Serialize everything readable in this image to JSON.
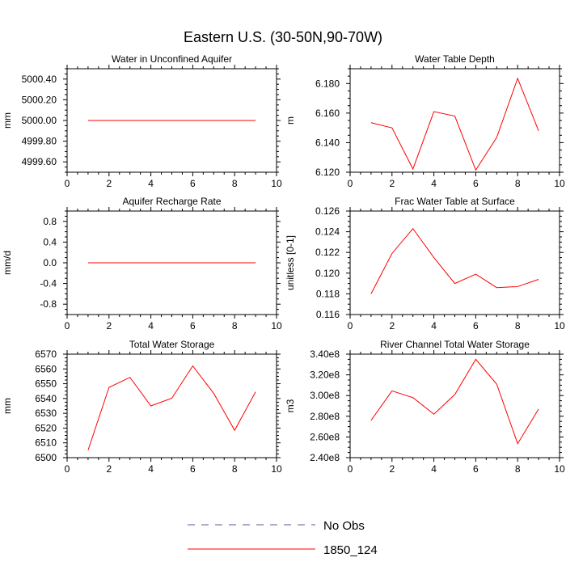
{
  "figure_title": "Eastern U.S. (30-50N,90-70W)",
  "colors": {
    "model": "#ff0000",
    "obs": "#5a5a9a",
    "axis": "#000000",
    "background": "#ffffff"
  },
  "legend": {
    "items": [
      {
        "label": "No Obs",
        "style": "dashed",
        "color": "#5a5a9a"
      },
      {
        "label": "1850_124",
        "style": "solid",
        "color": "#ff0000"
      }
    ]
  },
  "chart_data": [
    {
      "type": "line",
      "title": "Water in Unconfined Aquifer",
      "ylabel": "mm",
      "xlim": [
        0,
        10
      ],
      "ylim": [
        4999.5,
        5000.5
      ],
      "xticks": [
        0,
        2,
        4,
        6,
        8,
        10
      ],
      "xtick_labels": [
        "0",
        "2",
        "4",
        "6",
        "8",
        "10"
      ],
      "yticks": [
        4999.6,
        4999.8,
        5000.0,
        5000.2,
        5000.4
      ],
      "ytick_labels": [
        "4999.60",
        "4999.80",
        "5000.00",
        "5000.20",
        "5000.40"
      ],
      "series": [
        {
          "name": "1850_124",
          "x": [
            1,
            2,
            3,
            4,
            5,
            6,
            7,
            8,
            9
          ],
          "y": [
            5000.0,
            5000.0,
            5000.0,
            5000.0,
            5000.0,
            5000.0,
            5000.0,
            5000.0,
            5000.0
          ]
        }
      ]
    },
    {
      "type": "line",
      "title": "Water Table Depth",
      "ylabel": "m",
      "xlim": [
        0,
        10
      ],
      "ylim": [
        6.12,
        6.19
      ],
      "xticks": [
        0,
        2,
        4,
        6,
        8,
        10
      ],
      "xtick_labels": [
        "0",
        "2",
        "4",
        "6",
        "8",
        "10"
      ],
      "yticks": [
        6.12,
        6.14,
        6.16,
        6.18
      ],
      "ytick_labels": [
        "6.120",
        "6.140",
        "6.160",
        "6.180"
      ],
      "series": [
        {
          "name": "1850_124",
          "x": [
            1,
            2,
            3,
            4,
            5,
            6,
            7,
            8,
            9
          ],
          "y": [
            6.1535,
            6.15,
            6.1222,
            6.161,
            6.158,
            6.1215,
            6.1435,
            6.1835,
            6.148
          ]
        }
      ]
    },
    {
      "type": "line",
      "title": "Aquifer Recharge Rate",
      "ylabel": "mm/d",
      "xlim": [
        0,
        10
      ],
      "ylim": [
        -1.0,
        1.0
      ],
      "xticks": [
        0,
        2,
        4,
        6,
        8,
        10
      ],
      "xtick_labels": [
        "0",
        "2",
        "4",
        "6",
        "8",
        "10"
      ],
      "yticks": [
        -0.8,
        -0.4,
        0.0,
        0.4,
        0.8
      ],
      "ytick_labels": [
        "-0.8",
        "-0.4",
        "0.0",
        "0.4",
        "0.8"
      ],
      "series": [
        {
          "name": "1850_124",
          "x": [
            1,
            2,
            3,
            4,
            5,
            6,
            7,
            8,
            9
          ],
          "y": [
            0,
            0,
            0,
            0,
            0,
            0,
            0,
            0,
            0
          ]
        }
      ]
    },
    {
      "type": "line",
      "title": "Frac Water Table at Surface",
      "ylabel": "unitless [0-1]",
      "xlim": [
        0,
        10
      ],
      "ylim": [
        0.116,
        0.126
      ],
      "xticks": [
        0,
        2,
        4,
        6,
        8,
        10
      ],
      "xtick_labels": [
        "0",
        "2",
        "4",
        "6",
        "8",
        "10"
      ],
      "yticks": [
        0.116,
        0.118,
        0.12,
        0.122,
        0.124,
        0.126
      ],
      "ytick_labels": [
        "0.116",
        "0.118",
        "0.120",
        "0.122",
        "0.124",
        "0.126"
      ],
      "series": [
        {
          "name": "1850_124",
          "x": [
            1,
            2,
            3,
            4,
            5,
            6,
            7,
            8,
            9
          ],
          "y": [
            0.118,
            0.1219,
            0.1243,
            0.1215,
            0.119,
            0.1199,
            0.1186,
            0.1187,
            0.1194
          ]
        }
      ]
    },
    {
      "type": "line",
      "title": "Total Water Storage",
      "ylabel": "mm",
      "xlim": [
        0,
        10
      ],
      "ylim": [
        6500,
        6570
      ],
      "xticks": [
        0,
        2,
        4,
        6,
        8,
        10
      ],
      "xtick_labels": [
        "0",
        "2",
        "4",
        "6",
        "8",
        "10"
      ],
      "yticks": [
        6500,
        6510,
        6520,
        6530,
        6540,
        6550,
        6560,
        6570
      ],
      "ytick_labels": [
        "6500",
        "6510",
        "6520",
        "6530",
        "6540",
        "6550",
        "6560",
        "6570"
      ],
      "series": [
        {
          "name": "1850_124",
          "x": [
            1,
            2,
            3,
            4,
            5,
            6,
            7,
            8,
            9
          ],
          "y": [
            6505,
            6547.5,
            6554.3,
            6535,
            6540.2,
            6562,
            6543.5,
            6518.5,
            6544.5
          ]
        }
      ]
    },
    {
      "type": "line",
      "title": "River Channel Total Water Storage",
      "ylabel": "m3",
      "xlim": [
        0,
        10
      ],
      "ylim": [
        240000000,
        340000000
      ],
      "xticks": [
        0,
        2,
        4,
        6,
        8,
        10
      ],
      "xtick_labels": [
        "0",
        "2",
        "4",
        "6",
        "8",
        "10"
      ],
      "yticks": [
        240000000,
        260000000,
        280000000,
        300000000,
        320000000,
        340000000
      ],
      "ytick_labels": [
        "2.40e8",
        "2.60e8",
        "2.80e8",
        "3.00e8",
        "3.20e8",
        "3.40e8"
      ],
      "series": [
        {
          "name": "1850_124",
          "x": [
            1,
            2,
            3,
            4,
            5,
            6,
            7,
            8,
            9
          ],
          "y": [
            276000000,
            304500000,
            298000000,
            282000000,
            301000000,
            335000000,
            311000000,
            253500000,
            287000000
          ]
        }
      ]
    }
  ]
}
